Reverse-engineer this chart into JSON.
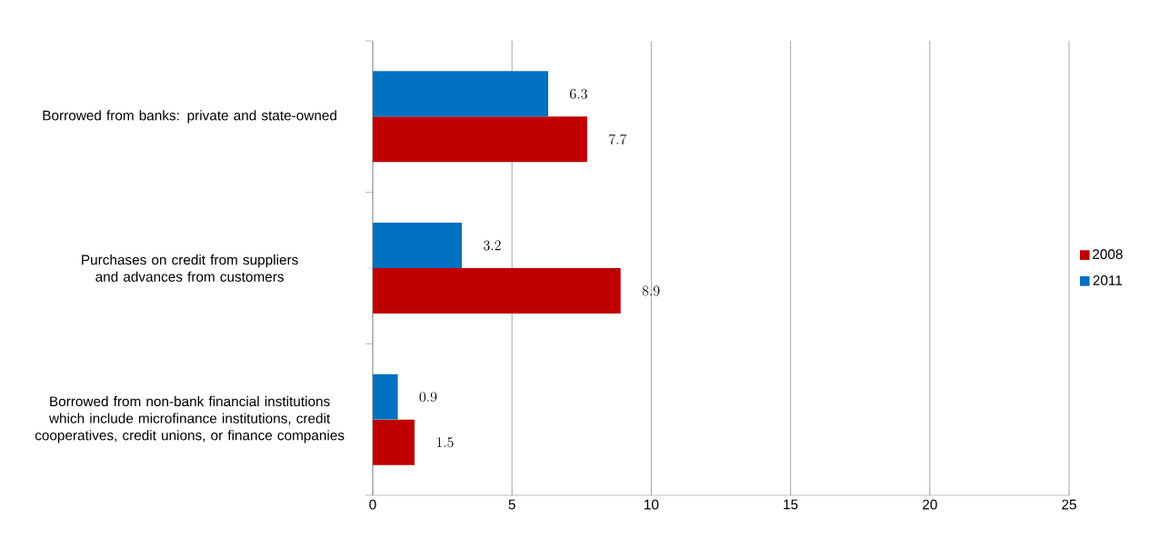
{
  "chart_data": {
    "type": "bar",
    "orientation": "horizontal",
    "categories": [
      "Borrowed from banks: private and state-owned",
      "Purchases on credit from suppliers and advances from customers",
      "Borrowed from non-bank financial institutions which include microfinance institutions, credit cooperatives, credit unions, or finance companies"
    ],
    "series": [
      {
        "name": "2008",
        "color": "#c00000",
        "values": [
          7.7,
          8.9,
          1.5
        ]
      },
      {
        "name": "2011",
        "color": "#0070c0",
        "values": [
          6.3,
          3.2,
          0.9
        ]
      }
    ],
    "xlim": [
      0,
      25
    ],
    "xticks": [
      0,
      5,
      10,
      15,
      20,
      25
    ],
    "grid": "x",
    "legend": "right",
    "data_labels": true
  }
}
